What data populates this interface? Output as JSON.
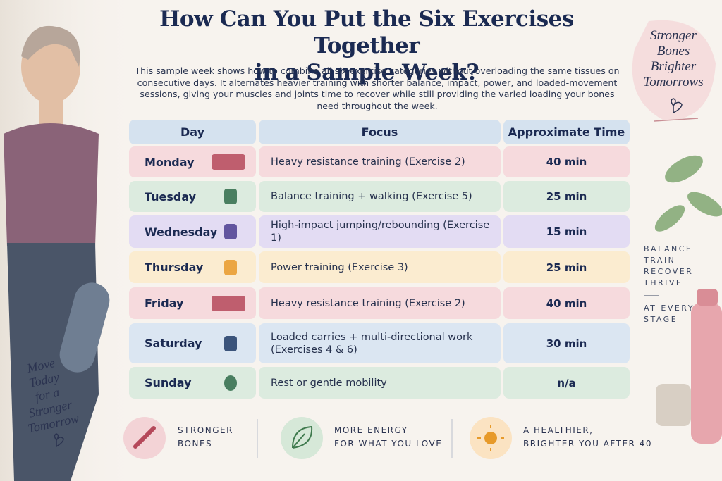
{
  "header": {
    "title_lines": [
      "How Can You Put the Six Exercises Together",
      "in a Sample Week?"
    ],
    "intro": "This sample week shows how to combine all six exercise categories without overloading the same tissues on consecutive days. It alternates heavier training with shorter balance, impact, power, and loaded-movement sessions, giving your muscles and joints time to recover while still providing the varied loading your bones need throughout the week."
  },
  "table": {
    "columns": [
      "Day",
      "Focus",
      "Approximate Time"
    ],
    "rows": [
      [
        "Monday",
        "Heavy resistance training (Exercise 2)",
        "40 min"
      ],
      [
        "Tuesday",
        "Balance training + walking (Exercise 5)",
        "25 min"
      ],
      [
        "Wednesday",
        "High-impact jumping/rebounding (Exercise 1)",
        "15 min"
      ],
      [
        "Thursday",
        "Power training (Exercise 3)",
        "25 min"
      ],
      [
        "Friday",
        "Heavy resistance training (Exercise 2)",
        "40 min"
      ],
      [
        "Saturday",
        "Loaded carries + multi-directional work (Exercises 4 & 6)",
        "30 min"
      ],
      [
        "Sunday",
        "Rest or gentle mobility",
        "n/a"
      ]
    ]
  },
  "badge": {
    "lines": [
      "Stronger",
      "Bones",
      "Brighter",
      "Tomorrows"
    ]
  },
  "note": {
    "lines": [
      "Move",
      "Today",
      "for a",
      "Stronger",
      "Tomorrow"
    ]
  },
  "side": {
    "lines": [
      "BALANCE",
      "TRAIN",
      "RECOVER",
      "THRIVE"
    ],
    "tagline": [
      "AT EVERY",
      "STAGE"
    ]
  },
  "footer": [
    {
      "lines": [
        "STRONGER",
        "BONES"
      ]
    },
    {
      "lines": [
        "MORE ENERGY",
        "FOR WHAT YOU LOVE"
      ]
    },
    {
      "lines": [
        "A HEALTHIER,",
        "BRIGHTER YOU AFTER 40"
      ]
    }
  ]
}
